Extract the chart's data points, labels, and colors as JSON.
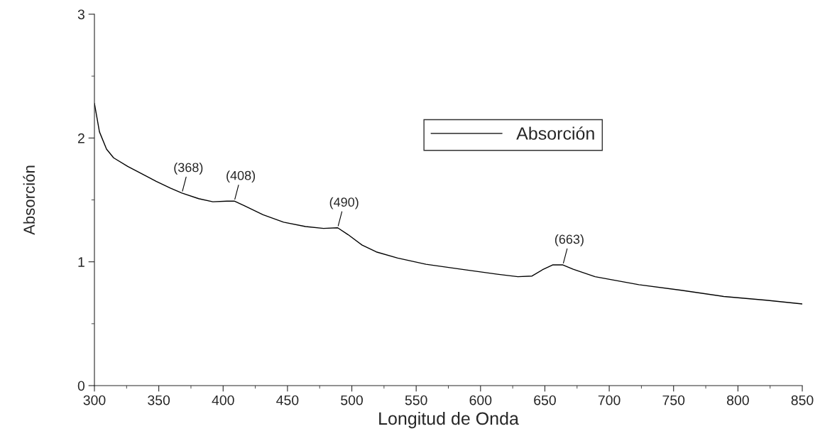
{
  "chart_data": {
    "type": "line",
    "xlabel": "Longitud de Onda",
    "ylabel": "Absorción",
    "xlim": [
      300,
      850
    ],
    "ylim": [
      0,
      3
    ],
    "xticks": [
      300,
      350,
      400,
      450,
      500,
      550,
      600,
      650,
      700,
      750,
      800,
      850
    ],
    "yticks": [
      0,
      1,
      2,
      3
    ],
    "grid": false,
    "legend": "top right",
    "marker": "none",
    "line_style": "solid",
    "series": [
      {
        "name": "Absorción",
        "color": "#000000",
        "x": [
          300,
          303.9,
          309.4,
          314.9,
          325.9,
          337,
          348,
          359,
          368,
          381,
          392,
          403,
          408.7,
          417,
          431,
          447,
          464,
          478,
          489,
          497,
          508,
          519,
          535.6,
          557.6,
          585,
          613,
          629,
          640,
          648,
          656,
          664,
          672,
          689,
          723,
          756,
          789,
          822,
          850
        ],
        "values": [
          2.28,
          2.05,
          1.91,
          1.84,
          1.77,
          1.71,
          1.65,
          1.595,
          1.555,
          1.51,
          1.485,
          1.49,
          1.49,
          1.45,
          1.38,
          1.32,
          1.285,
          1.27,
          1.275,
          1.22,
          1.135,
          1.08,
          1.03,
          0.98,
          0.94,
          0.9,
          0.88,
          0.885,
          0.935,
          0.975,
          0.975,
          0.94,
          0.88,
          0.815,
          0.77,
          0.72,
          0.69,
          0.66
        ]
      }
    ],
    "annotations": [
      {
        "text": "(368)",
        "x": 368,
        "y": 1.555
      },
      {
        "text": "(408)",
        "x": 408.7,
        "y": 1.49
      },
      {
        "text": "(490)",
        "x": 489,
        "y": 1.275
      },
      {
        "text": "(663)",
        "x": 664,
        "y": 0.975
      }
    ]
  }
}
